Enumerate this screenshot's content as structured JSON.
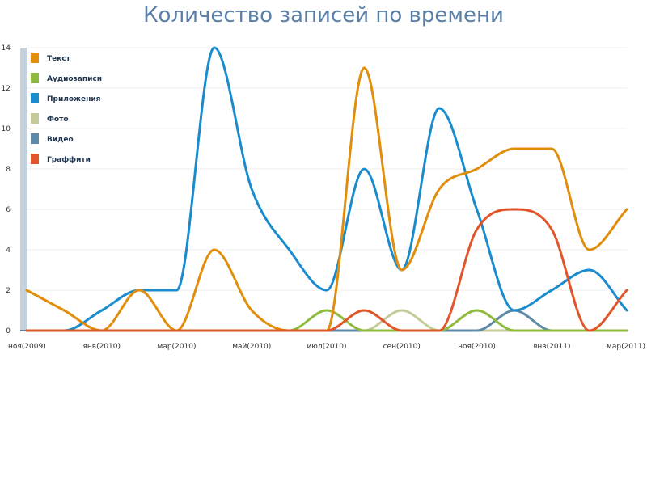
{
  "chart_data": {
    "type": "line",
    "title": "Количество записей по времени",
    "x_tick_labels": [
      "ноя(2009)",
      "янв(2010)",
      "мар(2010)",
      "май(2010)",
      "июл(2010)",
      "сен(2010)",
      "ноя(2010)",
      "янв(2011)",
      "мар(2011)"
    ],
    "x": [
      0,
      1,
      2,
      3,
      4,
      5,
      6,
      7,
      8,
      9,
      10,
      11,
      12,
      13,
      14,
      15,
      16
    ],
    "ylim": [
      0,
      14
    ],
    "y_ticks": [
      0,
      2,
      4,
      6,
      8,
      10,
      12,
      14
    ],
    "grid": true,
    "legend_position": "top-left",
    "series": [
      {
        "name": "Текст",
        "color": "#e08e0b",
        "values": [
          2,
          1,
          0,
          2,
          0,
          4,
          1,
          0,
          0,
          13,
          3,
          7,
          8,
          9,
          9,
          4,
          6
        ]
      },
      {
        "name": "Аудиозаписи",
        "color": "#8fba3d",
        "values": [
          0,
          0,
          0,
          0,
          0,
          0,
          0,
          0,
          1,
          0,
          0,
          0,
          1,
          0,
          0,
          0,
          0
        ]
      },
      {
        "name": "Приложения",
        "color": "#1a8ccd",
        "values": [
          0,
          0,
          1,
          2,
          2,
          14,
          7,
          4,
          2,
          8,
          3,
          11,
          6,
          1,
          2,
          3,
          1
        ]
      },
      {
        "name": "Фото",
        "color": "#c6ca9a",
        "values": [
          0,
          0,
          0,
          0,
          0,
          0,
          0,
          0,
          0,
          0,
          1,
          0,
          0,
          0,
          0,
          0,
          0
        ]
      },
      {
        "name": "Видео",
        "color": "#5e8aa8",
        "values": [
          0,
          0,
          0,
          0,
          0,
          0,
          0,
          0,
          0,
          0,
          0,
          0,
          0,
          1,
          0,
          0,
          0
        ]
      },
      {
        "name": "Граффити",
        "color": "#e0562a",
        "values": [
          0,
          0,
          0,
          0,
          0,
          0,
          0,
          0,
          0,
          1,
          0,
          0,
          5,
          6,
          5,
          0,
          2
        ]
      }
    ]
  }
}
